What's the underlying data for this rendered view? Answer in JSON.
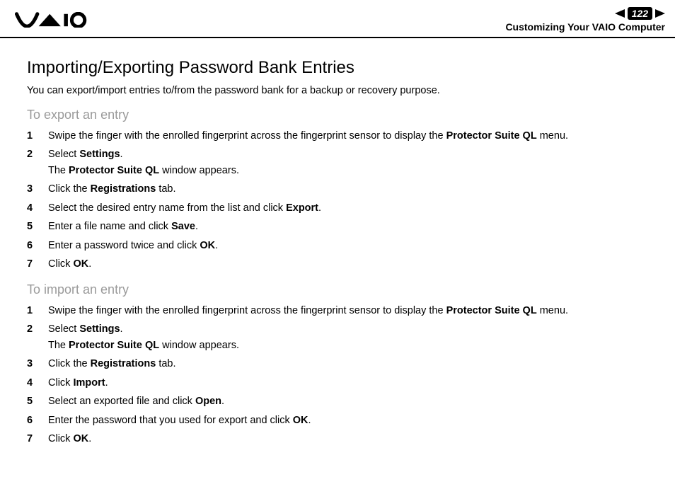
{
  "header": {
    "page_number": "122",
    "section": "Customizing Your VAIO Computer"
  },
  "content": {
    "title": "Importing/Exporting Password Bank Entries",
    "intro": "You can export/import entries to/from the password bank for a backup or recovery purpose.",
    "export": {
      "heading": "To export an entry",
      "steps": [
        {
          "n": "1",
          "html": "Swipe the finger with the enrolled fingerprint across the fingerprint sensor to display the <b>Protector Suite QL</b> menu."
        },
        {
          "n": "2",
          "html": "Select <b>Settings</b>.<span class=\"step-line2\">The <b>Protector Suite QL</b> window appears.</span>"
        },
        {
          "n": "3",
          "html": "Click the <b>Registrations</b> tab."
        },
        {
          "n": "4",
          "html": "Select the desired entry name from the list and click <b>Export</b>."
        },
        {
          "n": "5",
          "html": "Enter a file name and click <b>Save</b>."
        },
        {
          "n": "6",
          "html": "Enter a password twice and click <b>OK</b>."
        },
        {
          "n": "7",
          "html": "Click <b>OK</b>."
        }
      ]
    },
    "import": {
      "heading": "To import an entry",
      "steps": [
        {
          "n": "1",
          "html": "Swipe the finger with the enrolled fingerprint across the fingerprint sensor to display the <b>Protector Suite QL</b> menu."
        },
        {
          "n": "2",
          "html": "Select <b>Settings</b>.<span class=\"step-line2\">The <b>Protector Suite QL</b> window appears.</span>"
        },
        {
          "n": "3",
          "html": "Click the <b>Registrations</b> tab."
        },
        {
          "n": "4",
          "html": "Click <b>Import</b>."
        },
        {
          "n": "5",
          "html": "Select an exported file and click <b>Open</b>."
        },
        {
          "n": "6",
          "html": "Enter the password that you used for export and click <b>OK</b>."
        },
        {
          "n": "7",
          "html": "Click <b>OK</b>."
        }
      ]
    }
  }
}
